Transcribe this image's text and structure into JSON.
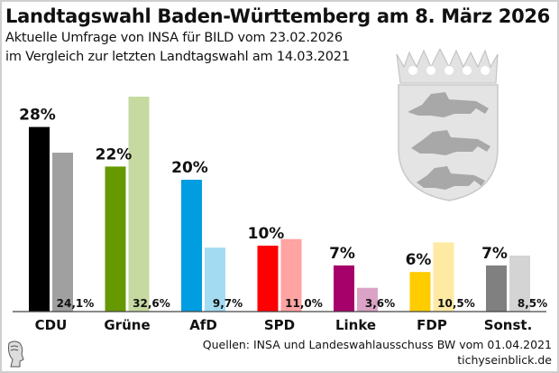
{
  "header": {
    "title": "Landtagswahl Baden-Württemberg am 8. März 2026",
    "subtitle_line1": "Aktuelle Umfrage von INSA für BILD vom 23.02.2026",
    "subtitle_line2": "im Vergleich zur letzten Landtagswahl am 14.03.2021"
  },
  "footer": {
    "sources": "Quellen: INSA und Landeswahlausschuss BW vom 01.04.2021",
    "site": "tichyseinblick.de"
  },
  "icons": {
    "coat_of_arms": "baden-wuerttemberg-coat-of-arms-icon",
    "logo": "tichys-einblick-head-logo-icon"
  },
  "chart_data": {
    "type": "bar",
    "title": "Landtagswahl Baden-Württemberg am 8. März 2026",
    "xlabel": "",
    "ylabel": "",
    "ylim": [
      0,
      35
    ],
    "grid": false,
    "categories": [
      "CDU",
      "Grüne",
      "AfD",
      "SPD",
      "Linke",
      "FDP",
      "Sonst."
    ],
    "series": [
      {
        "name": "INSA Umfrage 23.02.2026",
        "values": [
          28,
          22,
          20,
          10,
          7,
          6,
          7
        ],
        "labels": [
          "28%",
          "22%",
          "20%",
          "10%",
          "7%",
          "6%",
          "7%"
        ],
        "colors": [
          "#000000",
          "#669900",
          "#009ee0",
          "#ff0000",
          "#a6006b",
          "#ffcc00",
          "#808080"
        ]
      },
      {
        "name": "Landtagswahl 14.03.2021",
        "values": [
          24.1,
          32.6,
          9.7,
          11.0,
          3.6,
          10.5,
          8.5
        ],
        "labels": [
          "24,1%",
          "32,6%",
          "9,7%",
          "11,0%",
          "3,6%",
          "10,5%",
          "8,5%"
        ],
        "colors": [
          "#a0a0a0",
          "#c6d9a0",
          "#a3dbf2",
          "#ffa3a3",
          "#dba3c6",
          "#ffeaa3",
          "#d4d4d4"
        ]
      }
    ]
  }
}
